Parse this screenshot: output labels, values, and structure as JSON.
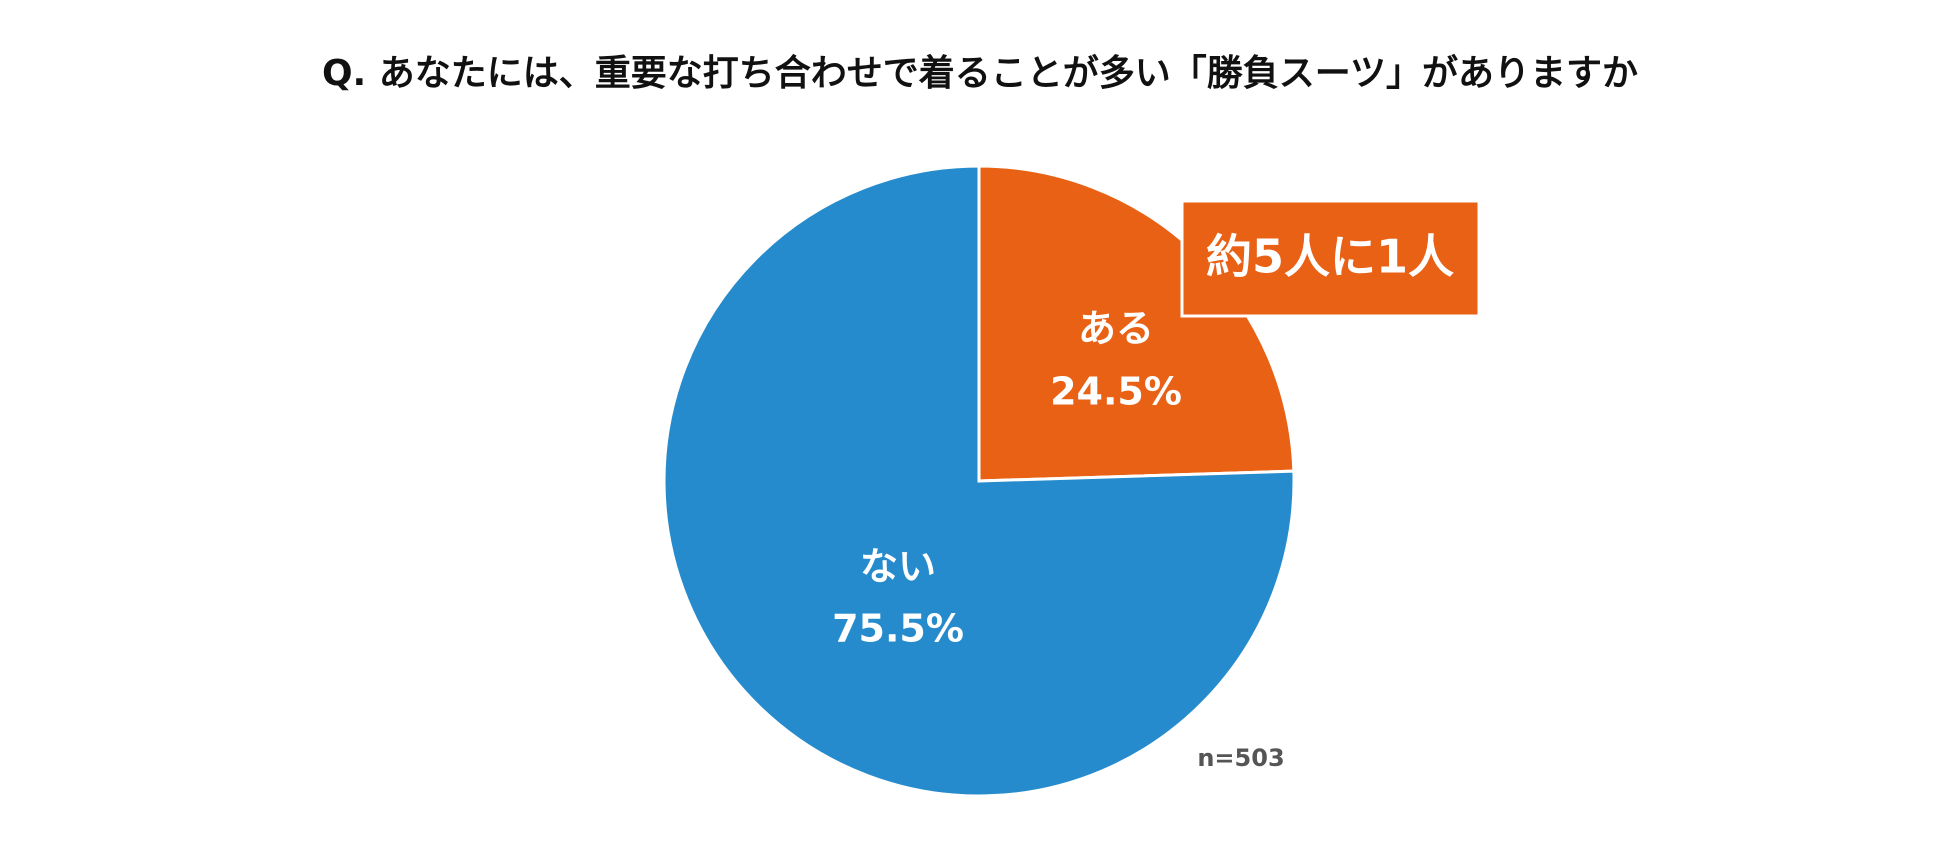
{
  "chart_data": {
    "type": "pie",
    "title": "Q. あなたには、重要な打ち合わせで着ることが多い「勝負スーツ」がありますか",
    "categories": [
      "ある",
      "ない"
    ],
    "values": [
      24.5,
      75.5
    ],
    "value_labels": [
      "24.5%",
      "75.5%"
    ],
    "colors": [
      "#e96114",
      "#268bcd"
    ],
    "annotation": "約5人に1人",
    "annotation_color": "#e96114",
    "note": "n=503"
  }
}
